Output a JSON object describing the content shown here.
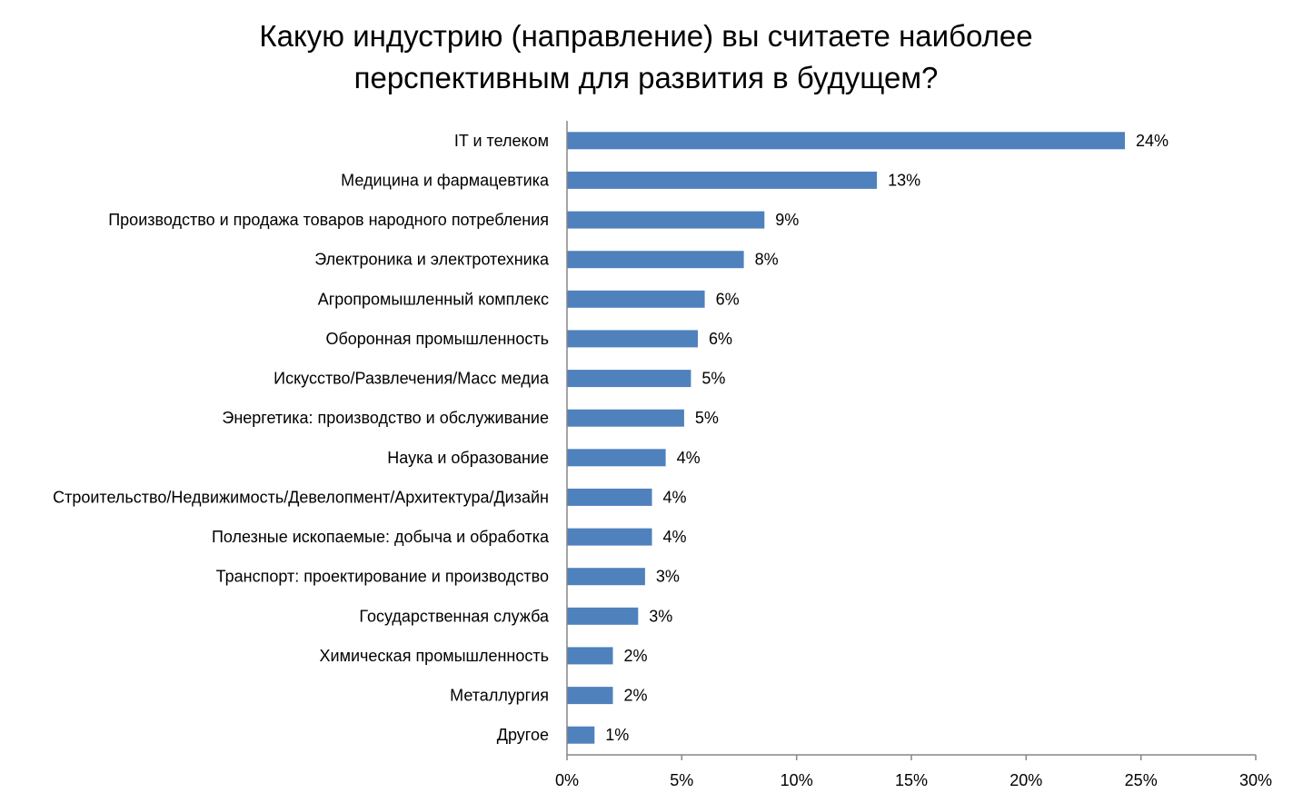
{
  "chart_data": {
    "type": "bar",
    "orientation": "horizontal",
    "title_lines": [
      "Какую индустрию (направление) вы считаете наиболее",
      "перспективным для развития в будущем?"
    ],
    "categories": [
      "IT и телеком",
      "Медицина и фармацевтика",
      "Производство и продажа товаров народного потребления",
      "Электроника и электротехника",
      "Агропромышленный комплекс",
      "Оборонная промышленность",
      "Искусство/Развлечения/Масс медиа",
      "Энергетика: производство и обслуживание",
      "Наука и образование",
      "Строительство/Недвижимость/Девелопмент/Архитектура/Дизайн",
      "Полезные ископаемые: добыча и обработка",
      "Транспорт: проектирование и производство",
      "Государственная служба",
      "Химическая промышленность",
      "Металлургия",
      "Другое"
    ],
    "values": [
      24.3,
      13.5,
      8.6,
      7.7,
      6.0,
      5.7,
      5.4,
      5.1,
      4.3,
      3.7,
      3.7,
      3.4,
      3.1,
      2.0,
      2.0,
      1.2
    ],
    "value_labels": [
      "24%",
      "13%",
      "9%",
      "8%",
      "6%",
      "6%",
      "5%",
      "5%",
      "4%",
      "4%",
      "4%",
      "3%",
      "3%",
      "2%",
      "2%",
      "1%"
    ],
    "xlim": [
      0,
      30
    ],
    "x_ticks": [
      0,
      5,
      10,
      15,
      20,
      25,
      30
    ],
    "x_tick_labels": [
      "0%",
      "5%",
      "10%",
      "15%",
      "20%",
      "25%",
      "30%"
    ],
    "grid": false,
    "legend": "none",
    "bar_color": "#4F81BD",
    "axis_color": "#868686"
  }
}
